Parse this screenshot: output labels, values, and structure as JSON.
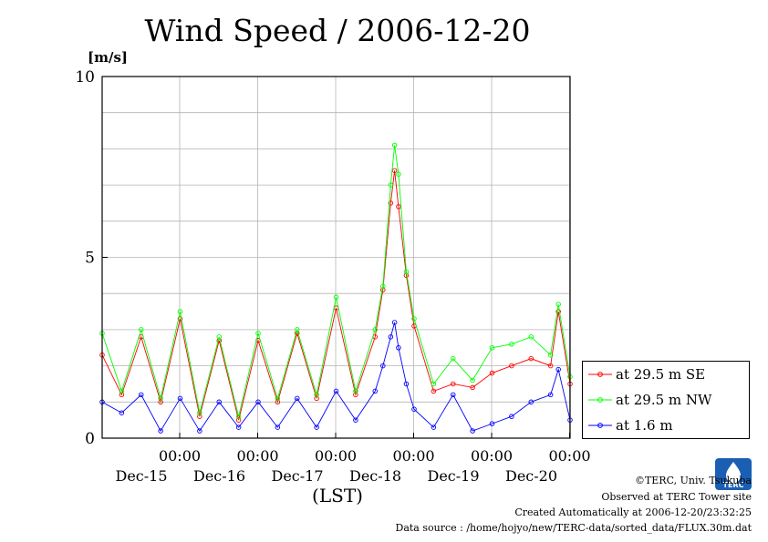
{
  "title": "Wind Speed / 2006-12-20",
  "unit_label": "[m/s]",
  "x_axis_label": "(LST)",
  "legend": [
    {
      "label": "at 29.5 m SE",
      "color": "#ff0000"
    },
    {
      "label": "at 29.5 m NW",
      "color": "#00ff00"
    },
    {
      "label": "at 1.6 m",
      "color": "#0000ff"
    }
  ],
  "credits": {
    "copyright": "©TERC, Univ. Tsukuba",
    "observed": "Observed at TERC Tower site",
    "created": "Created Automatically at 2006-12-20/23:32:25",
    "source": "Data source : /home/hojyo/new/TERC-data/sorted_data/FLUX.30m.dat"
  },
  "logo_text": "TERC",
  "chart_data": {
    "type": "line",
    "title": "Wind Speed / 2006-12-20",
    "ylabel": "[m/s]",
    "xlabel": "(LST)",
    "ylim": [
      0,
      10
    ],
    "yticks": [
      "0",
      "5",
      "10"
    ],
    "xlim_days": [
      0,
      6
    ],
    "x_ticks": [
      {
        "time": "00:00",
        "date": "Dec-15"
      },
      {
        "time": "00:00",
        "date": "Dec-16"
      },
      {
        "time": "00:00",
        "date": "Dec-17"
      },
      {
        "time": "00:00",
        "date": "Dec-18"
      },
      {
        "time": "00:00",
        "date": "Dec-19"
      },
      {
        "time": "00:00",
        "date": "Dec-20"
      }
    ],
    "grid": true,
    "legend_position": "right",
    "series": [
      {
        "name": "at 29.5 m SE",
        "color": "#ff0000",
        "x": [
          0,
          0.25,
          0.5,
          0.75,
          1.0,
          1.25,
          1.5,
          1.75,
          2.0,
          2.25,
          2.5,
          2.75,
          3.0,
          3.25,
          3.5,
          3.6,
          3.7,
          3.75,
          3.8,
          3.9,
          4.0,
          4.25,
          4.5,
          4.75,
          5.0,
          5.25,
          5.5,
          5.75,
          5.85,
          6.0
        ],
        "y": [
          2.3,
          1.2,
          2.8,
          1.0,
          3.3,
          0.6,
          2.7,
          0.5,
          2.7,
          1.0,
          2.9,
          1.1,
          3.6,
          1.2,
          2.8,
          4.1,
          6.5,
          7.4,
          6.4,
          4.5,
          3.1,
          1.3,
          1.5,
          1.4,
          1.8,
          2.0,
          2.2,
          2.0,
          3.5,
          1.5
        ],
        "values": [
          2.3,
          1.2,
          2.8,
          1.0,
          3.3,
          0.6,
          2.7,
          0.5,
          2.7,
          1.0,
          2.9,
          1.1,
          3.6,
          1.2,
          2.8,
          4.1,
          6.5,
          7.4,
          6.4,
          4.5,
          3.1,
          1.3,
          1.5,
          1.4,
          1.8,
          2.0,
          2.2,
          2.0,
          3.5,
          1.5
        ]
      },
      {
        "name": "at 29.5 m NW",
        "color": "#00ff00",
        "x": [
          0,
          0.25,
          0.5,
          0.75,
          1.0,
          1.25,
          1.5,
          1.75,
          2.0,
          2.25,
          2.5,
          2.75,
          3.0,
          3.25,
          3.5,
          3.6,
          3.7,
          3.75,
          3.8,
          3.9,
          4.0,
          4.25,
          4.5,
          4.75,
          5.0,
          5.25,
          5.5,
          5.75,
          5.85,
          6.0
        ],
        "y": [
          2.9,
          1.3,
          3.0,
          1.1,
          3.5,
          0.7,
          2.8,
          0.6,
          2.9,
          1.1,
          3.0,
          1.2,
          3.9,
          1.3,
          3.0,
          4.2,
          7.0,
          8.1,
          7.3,
          4.6,
          3.3,
          1.5,
          2.2,
          1.6,
          2.5,
          2.6,
          2.8,
          2.3,
          3.7,
          1.7
        ],
        "values": [
          2.9,
          1.3,
          3.0,
          1.1,
          3.5,
          0.7,
          2.8,
          0.6,
          2.9,
          1.1,
          3.0,
          1.2,
          3.9,
          1.3,
          3.0,
          4.2,
          7.0,
          8.1,
          7.3,
          4.6,
          3.3,
          1.5,
          2.2,
          1.6,
          2.5,
          2.6,
          2.8,
          2.3,
          3.7,
          1.7
        ]
      },
      {
        "name": "at 1.6 m",
        "color": "#0000ff",
        "x": [
          0,
          0.25,
          0.5,
          0.75,
          1.0,
          1.25,
          1.5,
          1.75,
          2.0,
          2.25,
          2.5,
          2.75,
          3.0,
          3.25,
          3.5,
          3.6,
          3.7,
          3.75,
          3.8,
          3.9,
          4.0,
          4.25,
          4.5,
          4.75,
          5.0,
          5.25,
          5.5,
          5.75,
          5.85,
          6.0
        ],
        "y": [
          1.0,
          0.7,
          1.2,
          0.2,
          1.1,
          0.2,
          1.0,
          0.3,
          1.0,
          0.3,
          1.1,
          0.3,
          1.3,
          0.5,
          1.3,
          2.0,
          2.8,
          3.2,
          2.5,
          1.5,
          0.8,
          0.3,
          1.2,
          0.2,
          0.4,
          0.6,
          1.0,
          1.2,
          1.9,
          0.5
        ],
        "values": [
          1.0,
          0.7,
          1.2,
          0.2,
          1.1,
          0.2,
          1.0,
          0.3,
          1.0,
          0.3,
          1.1,
          0.3,
          1.3,
          0.5,
          1.3,
          2.0,
          2.8,
          3.2,
          2.5,
          1.5,
          0.8,
          0.3,
          1.2,
          0.2,
          0.4,
          0.6,
          1.0,
          1.2,
          1.9,
          0.5
        ]
      }
    ]
  }
}
